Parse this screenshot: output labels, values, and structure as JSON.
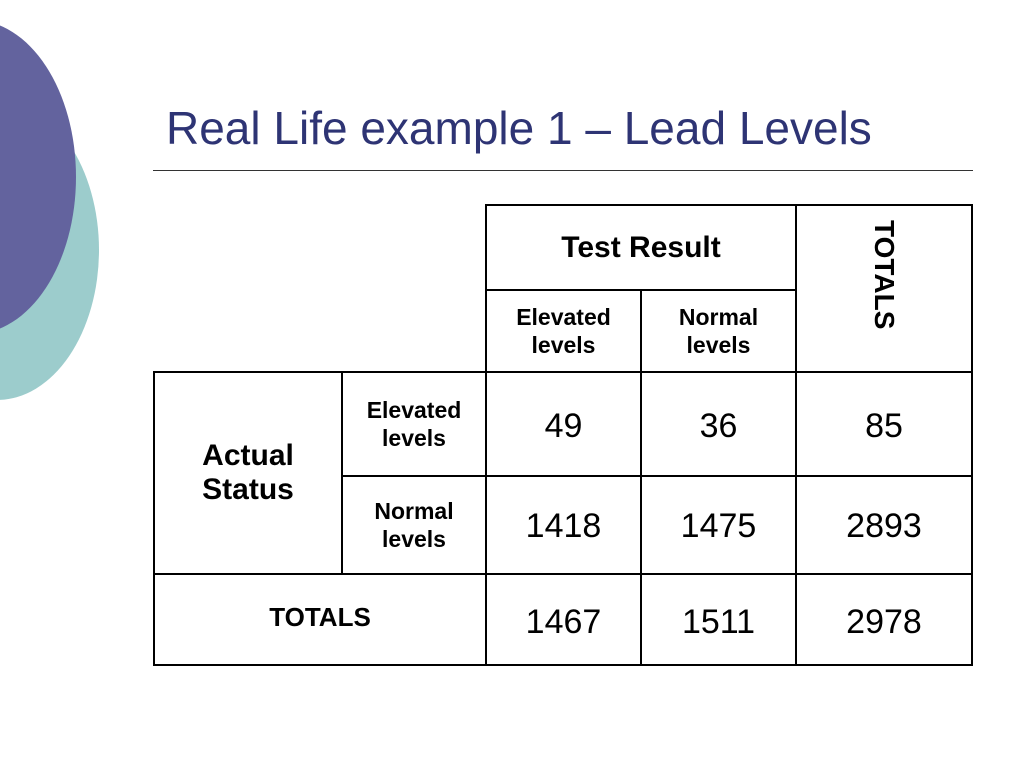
{
  "slide": {
    "title": "Real Life example 1 – Lead Levels"
  },
  "table": {
    "test_result_header": "Test Result",
    "totals_column_header": "TOTALS",
    "col_elevated": "Elevated levels",
    "col_normal": "Normal levels",
    "actual_status_header": "Actual Status",
    "row_elevated": "Elevated levels",
    "row_normal": "Normal levels",
    "totals_row_header": "TOTALS",
    "rows": [
      {
        "elevated": "49",
        "normal": "36",
        "total": "85"
      },
      {
        "elevated": "1418",
        "normal": "1475",
        "total": "2893"
      }
    ],
    "totals": {
      "elevated": "1467",
      "normal": "1511",
      "total": "2978"
    }
  },
  "colors": {
    "title": "#2e3474",
    "circle_purple": "#63639e",
    "circle_teal": "#9ccccc"
  }
}
